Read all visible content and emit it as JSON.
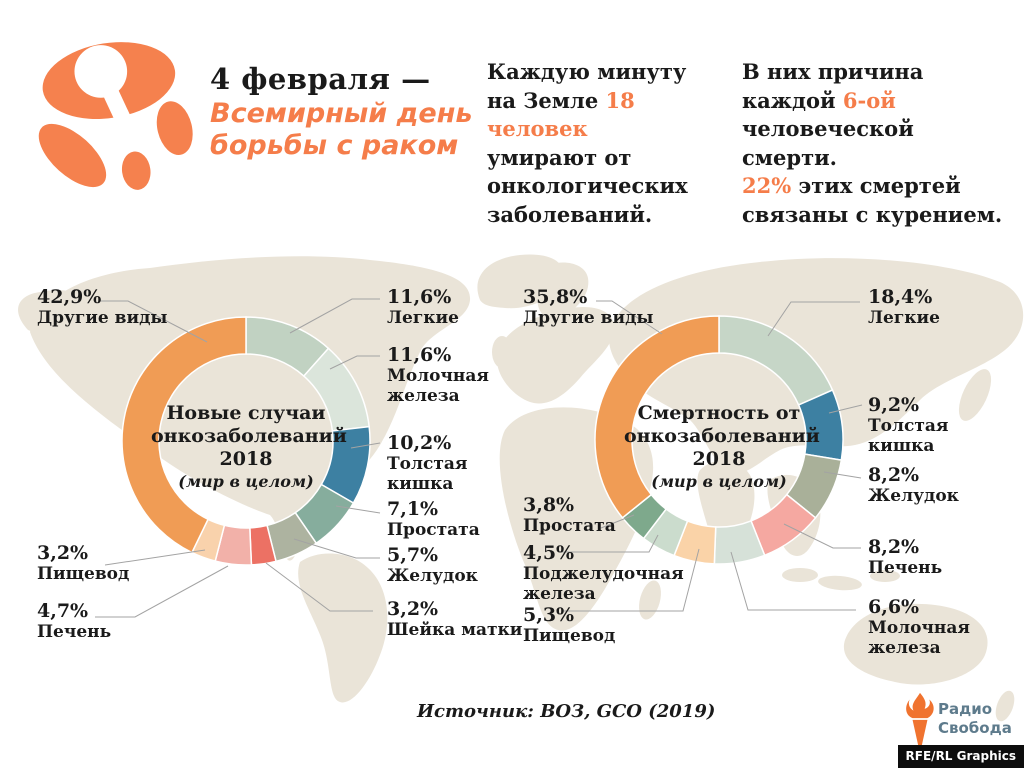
{
  "accent_color": "#f57d4a",
  "map_color": "#eae4d8",
  "header": {
    "logo": "world-cancer-day-logo",
    "date_title": "4 февраля —",
    "campaign_title": "Всемирный день\nборьбы с раком",
    "intro1_parts": [
      {
        "t": "Каждую минуту\nна Земле "
      },
      {
        "t": "18 человек",
        "a": true
      },
      {
        "t": "\nумирают от\nонкологических\nзаболеваний."
      }
    ],
    "intro2_parts": [
      {
        "t": "В них причина\nкаждой "
      },
      {
        "t": "6-ой",
        "a": true
      },
      {
        "t": "\nчеловеческой смерти.\n"
      },
      {
        "t": "22%",
        "a": true
      },
      {
        "t": " этих смертей\nсвязаны с курением."
      }
    ]
  },
  "chart_data": [
    {
      "type": "pie",
      "subtype": "donut",
      "title": "Новые случаи\nонкозаболеваний\n2018",
      "subtitle": "(мир в целом)",
      "legend_position": "around",
      "slices": [
        {
          "label": "Легкие",
          "value": 11.6,
          "pct": "11,6%",
          "color": "#c1d2c2"
        },
        {
          "label": "Молочная железа",
          "value": 11.6,
          "pct": "11,6%",
          "color": "#dbe5db"
        },
        {
          "label": "Толстая кишка",
          "value": 10.2,
          "pct": "10,2%",
          "color": "#3d80a2"
        },
        {
          "label": "Простата",
          "value": 7.1,
          "pct": "7,1%",
          "color": "#86ad9d"
        },
        {
          "label": "Желудок",
          "value": 5.7,
          "pct": "5,7%",
          "color": "#adb3a0"
        },
        {
          "label": "Шейка матки",
          "value": 3.2,
          "pct": "3,2%",
          "color": "#ec7164"
        },
        {
          "label": "Печень",
          "value": 4.7,
          "pct": "4,7%",
          "color": "#f2b1a9"
        },
        {
          "label": "Пищевод",
          "value": 3.2,
          "pct": "3,2%",
          "color": "#f9d2ac"
        },
        {
          "label": "Другие виды",
          "value": 42.9,
          "pct": "42,9%",
          "color": "#f09c55"
        }
      ]
    },
    {
      "type": "pie",
      "subtype": "donut",
      "title": "Смертность от\nонкозаболеваний\n2018",
      "subtitle": "(мир в целом)",
      "legend_position": "around",
      "slices": [
        {
          "label": "Легкие",
          "value": 18.4,
          "pct": "18,4%",
          "color": "#c6d6c7"
        },
        {
          "label": "Толстая кишка",
          "value": 9.2,
          "pct": "9,2%",
          "color": "#3d80a2"
        },
        {
          "label": "Желудок",
          "value": 8.2,
          "pct": "8,2%",
          "color": "#a9b099"
        },
        {
          "label": "Печень",
          "value": 8.2,
          "pct": "8,2%",
          "color": "#f5a8a1"
        },
        {
          "label": "Молочная железа",
          "value": 6.6,
          "pct": "6,6%",
          "color": "#d6e1d8"
        },
        {
          "label": "Пищевод",
          "value": 5.3,
          "pct": "5,3%",
          "color": "#fad3a8"
        },
        {
          "label": "Поджелудочная железа",
          "value": 4.5,
          "pct": "4,5%",
          "color": "#cbdccd"
        },
        {
          "label": "Простата",
          "value": 3.8,
          "pct": "3,8%",
          "color": "#7ea98c"
        },
        {
          "label": "Другие виды",
          "value": 35.8,
          "pct": "35,8%",
          "color": "#f09c55"
        }
      ]
    }
  ],
  "footer": {
    "source": "Источник: ВОЗ, GCO (2019)",
    "radio_logo_text": "Радио\nСвобода",
    "credit": "RFE/RL Graphics"
  }
}
